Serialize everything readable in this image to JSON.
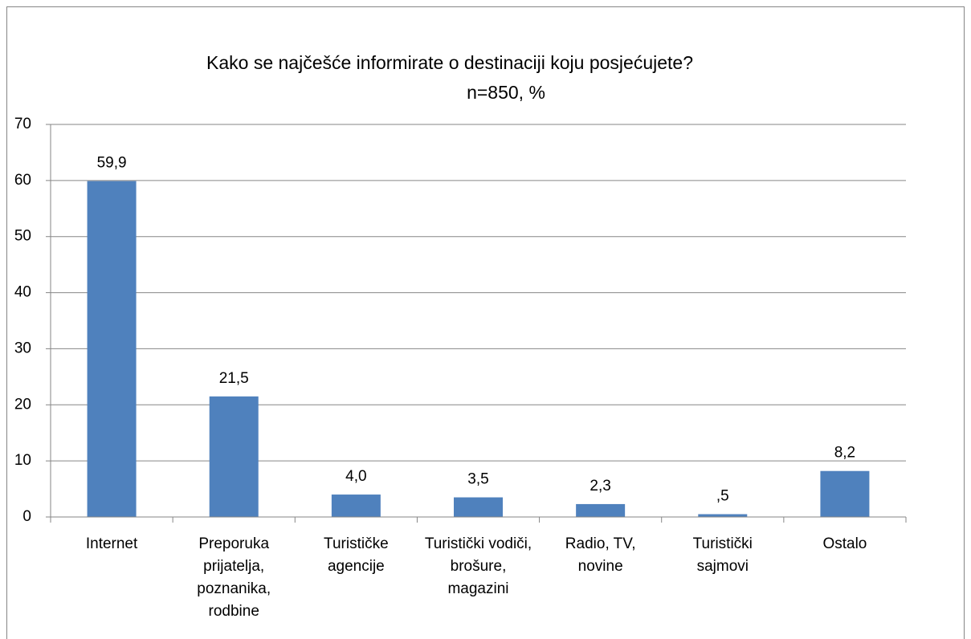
{
  "chart_data": {
    "type": "bar",
    "title": "Kako se najčešće informirate o destinaciji koju posjećujete?",
    "subtitle": "n=850, %",
    "categories": [
      "Internet",
      "Preporuka prijatelja, poznanika, rodbine",
      "Turističke agencije",
      "Turistički vodiči, brošure, magazini",
      "Radio, TV, novine",
      "Turistički sajmovi",
      "Ostalo"
    ],
    "values": [
      59.9,
      21.5,
      4.0,
      3.5,
      2.3,
      0.5,
      8.2
    ],
    "value_labels": [
      "59,9",
      "21,5",
      "4,0",
      "3,5",
      "2,3",
      ",5",
      "8,2"
    ],
    "color": "#4f81bd",
    "ylim": [
      0,
      70
    ],
    "yticks": [
      0,
      10,
      20,
      30,
      40,
      50,
      60,
      70
    ],
    "grid": true
  }
}
